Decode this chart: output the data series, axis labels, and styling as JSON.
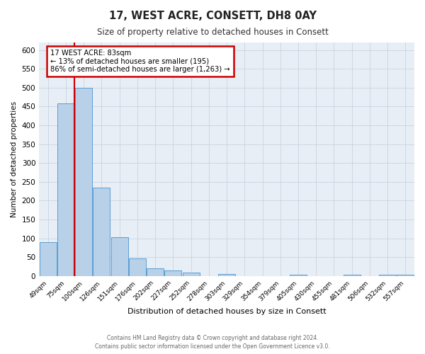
{
  "title": "17, WEST ACRE, CONSETT, DH8 0AY",
  "subtitle": "Size of property relative to detached houses in Consett",
  "xlabel": "Distribution of detached houses by size in Consett",
  "ylabel": "Number of detached properties",
  "categories": [
    "49sqm",
    "75sqm",
    "100sqm",
    "126sqm",
    "151sqm",
    "176sqm",
    "202sqm",
    "227sqm",
    "252sqm",
    "278sqm",
    "303sqm",
    "329sqm",
    "354sqm",
    "379sqm",
    "405sqm",
    "430sqm",
    "455sqm",
    "481sqm",
    "506sqm",
    "532sqm",
    "557sqm"
  ],
  "values": [
    90,
    458,
    500,
    235,
    103,
    46,
    20,
    15,
    9,
    0,
    5,
    0,
    0,
    0,
    3,
    0,
    0,
    3,
    0,
    3,
    3
  ],
  "bar_color": "#b8d0e8",
  "bar_edge_color": "#5a9fd4",
  "background_color": "#e8eef5",
  "annotation_title": "17 WEST ACRE: 83sqm",
  "annotation_line1": "← 13% of detached houses are smaller (195)",
  "annotation_line2": "86% of semi-detached houses are larger (1,263) →",
  "annotation_box_color": "#ffffff",
  "annotation_box_edge_color": "#cc0000",
  "red_line_color": "#cc0000",
  "red_line_x": 1.47,
  "ylim": [
    0,
    620
  ],
  "yticks": [
    0,
    50,
    100,
    150,
    200,
    250,
    300,
    350,
    400,
    450,
    500,
    550,
    600
  ],
  "footer_line1": "Contains HM Land Registry data © Crown copyright and database right 2024.",
  "footer_line2": "Contains public sector information licensed under the Open Government Licence v3.0."
}
